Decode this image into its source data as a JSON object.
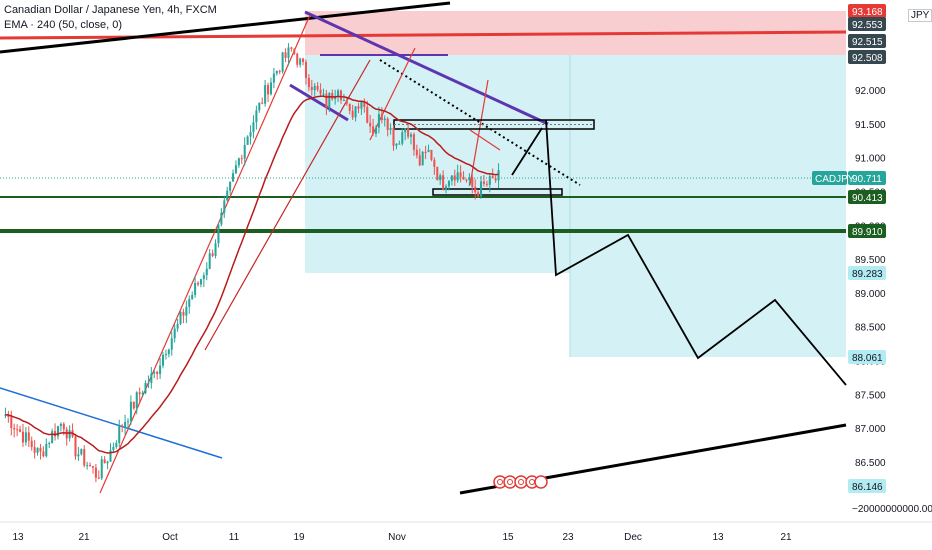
{
  "header": {
    "title": "Canadian Dollar / Japanese Yen, 4h, FXCM",
    "indicator": "EMA · 240 (50, close, 0)",
    "currency": "JPY"
  },
  "colors": {
    "candle_up": "#26a69a",
    "candle_down": "#ef5350",
    "ema": "#b71c1c",
    "zone_red": "#f8c6c8",
    "zone_cyan": "#cdeff4",
    "support_line": "#1b5e20",
    "trend_purple": "#5e35b1",
    "resistance_red": "#e53935",
    "blue_trend": "#1e6fd9"
  },
  "chart_data": {
    "type": "candlestick",
    "title": "Canadian Dollar / Japanese Yen, 4h, FXCM",
    "y_axis_ticks": [
      "92.000",
      "91.500",
      "91.000",
      "90.500",
      "90.000",
      "89.500",
      "89.000",
      "88.500",
      "88.000",
      "87.500",
      "87.000",
      "86.500"
    ],
    "y_extra_label": "−20000000000.000",
    "ylim": [
      85.9,
      93.3
    ],
    "x_axis_ticks": [
      "13",
      "21",
      "Oct",
      "11",
      "19",
      "Nov",
      "15",
      "23",
      "Dec",
      "13",
      "21"
    ],
    "price_labels": [
      {
        "value": "93.168",
        "kind": "red"
      },
      {
        "value": "92.553",
        "kind": "dark"
      },
      {
        "value": "92.515",
        "kind": "dark"
      },
      {
        "value": "92.508",
        "kind": "dark"
      },
      {
        "value": "90.711",
        "kind": "teal",
        "symbol": "CADJPY"
      },
      {
        "value": "90.413",
        "kind": "green"
      },
      {
        "value": "89.910",
        "kind": "green"
      },
      {
        "value": "89.283",
        "kind": "cyan"
      },
      {
        "value": "88.061",
        "kind": "cyan"
      },
      {
        "value": "86.146",
        "kind": "cyan"
      }
    ],
    "levels": {
      "support_1": 90.413,
      "support_2": 89.91,
      "zone_top": 93.168,
      "zone_mid": 92.508,
      "target_1": 89.283,
      "target_2": 88.061
    },
    "ohlc_sample_closes": [
      87.2,
      87.0,
      86.8,
      86.6,
      86.9,
      87.1,
      86.7,
      86.5,
      86.3,
      86.6,
      87.0,
      87.3,
      87.6,
      87.8,
      88.2,
      88.5,
      88.9,
      89.2,
      89.6,
      90.2,
      90.8,
      91.3,
      91.7,
      92.1,
      92.4,
      92.6,
      92.3,
      92.0,
      91.8,
      92.1,
      91.6,
      91.9,
      91.4,
      91.7,
      91.2,
      91.5,
      90.9,
      91.1,
      90.6,
      90.8,
      90.7,
      90.5,
      90.6,
      90.7
    ],
    "projection_path_prices": [
      90.65,
      91.5,
      89.3,
      90.0,
      88.0,
      88.9,
      87.6
    ]
  }
}
